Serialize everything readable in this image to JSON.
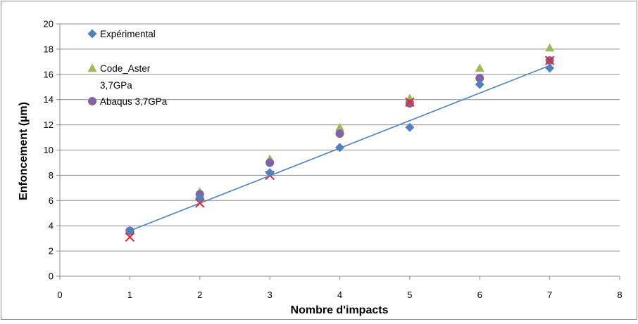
{
  "chart_data": {
    "type": "scatter",
    "title": "",
    "xlabel": "Nombre d'impacts",
    "ylabel": "Enfoncement (µm)",
    "xlim": [
      0,
      8
    ],
    "ylim": [
      0,
      20
    ],
    "x_ticks": [
      "0",
      "1",
      "2",
      "3",
      "4",
      "5",
      "6",
      "7",
      "8"
    ],
    "y_ticks": [
      "0",
      "2",
      "4",
      "6",
      "8",
      "10",
      "12",
      "14",
      "16",
      "18",
      "20"
    ],
    "grid": "horizontal",
    "legend_position": "top-left",
    "series": [
      {
        "name": "Expérimental",
        "marker": "diamond",
        "color": "#4F81BD",
        "x": [
          1,
          2,
          3,
          4,
          5,
          6,
          7
        ],
        "y": [
          3.6,
          6.2,
          8.2,
          10.2,
          11.8,
          15.2,
          16.5
        ]
      },
      {
        "name": "Code_Aster 3,7GPa",
        "legend_lines": [
          "Code_Aster",
          "3,7GPa"
        ],
        "marker": "triangle",
        "color": "#9BBB59",
        "x": [
          1,
          2,
          3,
          4,
          5,
          6,
          7
        ],
        "y": [
          3.6,
          6.7,
          9.3,
          11.8,
          14.1,
          16.5,
          18.1
        ]
      },
      {
        "name": "Abaqus 3,7GPa",
        "marker": "circle",
        "color": "#8064A2",
        "x": [
          1,
          2,
          3,
          4,
          5,
          6,
          7
        ],
        "y": [
          3.6,
          6.5,
          9.0,
          11.3,
          13.7,
          15.7,
          17.1
        ]
      },
      {
        "name": "",
        "marker": "x",
        "color": "#E8262A",
        "x": [
          1,
          2,
          3,
          5,
          7
        ],
        "y": [
          3.1,
          5.8,
          8.0,
          13.8,
          17.1
        ]
      }
    ],
    "trendline": {
      "color": "#4F81BD",
      "x": [
        1,
        7
      ],
      "y": [
        3.6,
        16.7
      ]
    }
  }
}
